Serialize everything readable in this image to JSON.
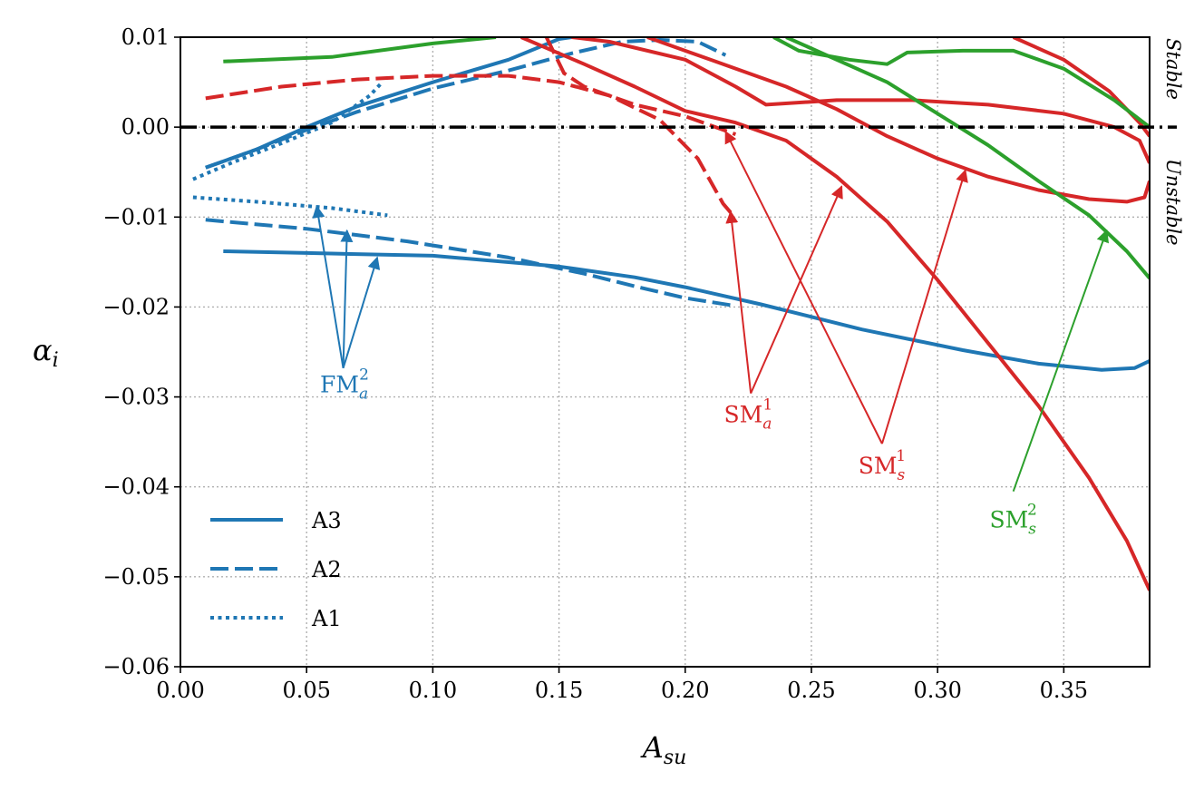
{
  "chart_data": {
    "type": "line",
    "xlabel": "A",
    "xlabel_sub": "su",
    "ylabel": "α",
    "ylabel_sub": "i",
    "xlim": [
      0.0,
      0.384
    ],
    "ylim": [
      -0.06,
      0.01
    ],
    "x_ticks": [
      0.0,
      0.05,
      0.1,
      0.15,
      0.2,
      0.25,
      0.3,
      0.35
    ],
    "x_tick_labels": [
      "0.00",
      "0.05",
      "0.10",
      "0.15",
      "0.20",
      "0.25",
      "0.30",
      "0.35"
    ],
    "y_ticks": [
      0.01,
      0.0,
      -0.01,
      -0.02,
      -0.03,
      -0.04,
      -0.05,
      -0.06
    ],
    "y_tick_labels": [
      "0.01",
      "0.00",
      "−0.01",
      "−0.02",
      "−0.03",
      "−0.04",
      "−0.05",
      "−0.06"
    ],
    "grid": true,
    "side_labels": {
      "stable": "Stable",
      "unstable": "Unstable"
    },
    "colors": {
      "blue": "#1f77b4",
      "red": "#d62728",
      "green": "#2ca02c",
      "black": "#000000",
      "grid": "#b0b0b0"
    },
    "legend": {
      "position": "lower-left",
      "entries": [
        {
          "label": "A3",
          "style": "solid"
        },
        {
          "label": "A2",
          "style": "dashed"
        },
        {
          "label": "A1",
          "style": "dotted"
        }
      ]
    },
    "reference_line": {
      "y": 0.0,
      "style": "dash-dot",
      "color": "black"
    },
    "series": [
      {
        "name": "FM a (A3)",
        "case": "A3",
        "color": "blue",
        "style": "solid",
        "points": [
          [
            0.017,
            -0.0138
          ],
          [
            0.05,
            -0.014
          ],
          [
            0.1,
            -0.0143
          ],
          [
            0.15,
            -0.0155
          ],
          [
            0.18,
            -0.0167
          ],
          [
            0.2,
            -0.0178
          ],
          [
            0.23,
            -0.0197
          ],
          [
            0.27,
            -0.0225
          ],
          [
            0.31,
            -0.0248
          ],
          [
            0.34,
            -0.0263
          ],
          [
            0.365,
            -0.027
          ],
          [
            0.378,
            -0.0268
          ],
          [
            0.384,
            -0.026
          ]
        ]
      },
      {
        "name": "FM s (A3)",
        "case": "A3",
        "color": "blue",
        "style": "solid",
        "points": [
          [
            0.01,
            -0.0045
          ],
          [
            0.03,
            -0.0025
          ],
          [
            0.05,
            0.0
          ],
          [
            0.07,
            0.0023
          ],
          [
            0.1,
            0.005
          ],
          [
            0.13,
            0.0075
          ],
          [
            0.15,
            0.0098
          ],
          [
            0.155,
            0.01
          ]
        ]
      },
      {
        "name": "FM a (A2)",
        "case": "A2",
        "color": "blue",
        "style": "dashed",
        "points": [
          [
            0.01,
            -0.0103
          ],
          [
            0.05,
            -0.0113
          ],
          [
            0.09,
            -0.0127
          ],
          [
            0.13,
            -0.0145
          ],
          [
            0.16,
            -0.0163
          ],
          [
            0.18,
            -0.0177
          ],
          [
            0.2,
            -0.019
          ],
          [
            0.218,
            -0.0198
          ]
        ]
      },
      {
        "name": "FM s (A2)",
        "case": "A2",
        "color": "blue",
        "style": "dashed",
        "points": [
          [
            0.01,
            -0.0045
          ],
          [
            0.03,
            -0.0025
          ],
          [
            0.05,
            -0.0003
          ],
          [
            0.07,
            0.0017
          ],
          [
            0.1,
            0.0043
          ],
          [
            0.13,
            0.0063
          ],
          [
            0.155,
            0.0082
          ],
          [
            0.175,
            0.0095
          ],
          [
            0.19,
            0.0097
          ],
          [
            0.205,
            0.0095
          ],
          [
            0.216,
            0.008
          ]
        ]
      },
      {
        "name": "FM a (A1)",
        "case": "A1",
        "color": "blue",
        "style": "dotted",
        "points": [
          [
            0.005,
            -0.0078
          ],
          [
            0.03,
            -0.0083
          ],
          [
            0.06,
            -0.009
          ],
          [
            0.082,
            -0.0098
          ]
        ]
      },
      {
        "name": "FM s (A1)",
        "case": "A1",
        "color": "blue",
        "style": "dotted",
        "points": [
          [
            0.005,
            -0.0058
          ],
          [
            0.02,
            -0.004
          ],
          [
            0.04,
            -0.0018
          ],
          [
            0.06,
            0.0005
          ],
          [
            0.075,
            0.0035
          ],
          [
            0.08,
            0.005
          ]
        ]
      },
      {
        "name": "SM1 a (A2)",
        "case": "A2",
        "color": "red",
        "style": "dashed",
        "points": [
          [
            0.01,
            0.0032
          ],
          [
            0.04,
            0.0045
          ],
          [
            0.07,
            0.0053
          ],
          [
            0.1,
            0.0057
          ],
          [
            0.13,
            0.0057
          ],
          [
            0.15,
            0.005
          ],
          [
            0.17,
            0.0035
          ],
          [
            0.19,
            0.0008
          ],
          [
            0.205,
            -0.0035
          ],
          [
            0.215,
            -0.0085
          ],
          [
            0.218,
            -0.0095
          ]
        ]
      },
      {
        "name": "SM1 a (A3)",
        "case": "A3",
        "color": "red",
        "style": "solid",
        "points": [
          [
            0.135,
            0.01
          ],
          [
            0.16,
            0.007
          ],
          [
            0.18,
            0.0045
          ],
          [
            0.2,
            0.0018
          ],
          [
            0.22,
            0.0005
          ],
          [
            0.24,
            -0.0015
          ],
          [
            0.26,
            -0.0055
          ],
          [
            0.28,
            -0.0105
          ],
          [
            0.3,
            -0.017
          ],
          [
            0.32,
            -0.024
          ],
          [
            0.34,
            -0.031
          ],
          [
            0.36,
            -0.039
          ],
          [
            0.375,
            -0.046
          ],
          [
            0.384,
            -0.0515
          ]
        ]
      },
      {
        "name": "SM1 s (A2)",
        "case": "A2",
        "color": "red",
        "style": "dashed",
        "points": [
          [
            0.145,
            0.01
          ],
          [
            0.152,
            0.006
          ],
          [
            0.16,
            0.0045
          ],
          [
            0.18,
            0.0025
          ],
          [
            0.2,
            0.0012
          ],
          [
            0.22,
            -0.0008
          ]
        ]
      },
      {
        "name": "SM1 s (A3)",
        "case": "A3",
        "color": "red",
        "style": "solid",
        "points": [
          [
            0.155,
            0.01
          ],
          [
            0.17,
            0.0095
          ],
          [
            0.2,
            0.0075
          ],
          [
            0.22,
            0.0045
          ],
          [
            0.232,
            0.0025
          ],
          [
            0.26,
            0.003
          ],
          [
            0.29,
            0.003
          ],
          [
            0.32,
            0.0025
          ],
          [
            0.35,
            0.0015
          ],
          [
            0.37,
            0.0
          ],
          [
            0.38,
            -0.0015
          ],
          [
            0.384,
            -0.004
          ]
        ]
      },
      {
        "name": "SM2 a (A3)",
        "case": "A3",
        "color": "red",
        "style": "solid",
        "points": [
          [
            0.185,
            0.01
          ],
          [
            0.21,
            0.0075
          ],
          [
            0.24,
            0.0045
          ],
          [
            0.26,
            0.002
          ],
          [
            0.28,
            -0.001
          ],
          [
            0.3,
            -0.0035
          ],
          [
            0.32,
            -0.0055
          ],
          [
            0.34,
            -0.007
          ],
          [
            0.36,
            -0.008
          ],
          [
            0.375,
            -0.0083
          ],
          [
            0.382,
            -0.0078
          ],
          [
            0.384,
            -0.006
          ]
        ]
      },
      {
        "name": "SM2 s (A3)",
        "case": "A3",
        "color": "red",
        "style": "solid",
        "points": [
          [
            0.33,
            0.01
          ],
          [
            0.35,
            0.0075
          ],
          [
            0.368,
            0.004
          ],
          [
            0.38,
            0.0005
          ],
          [
            0.384,
            -0.001
          ]
        ]
      },
      {
        "name": "SM s2 (A3)",
        "case": "A3",
        "color": "green",
        "style": "solid",
        "points": [
          [
            0.017,
            0.0073
          ],
          [
            0.06,
            0.0078
          ],
          [
            0.1,
            0.0093
          ],
          [
            0.125,
            0.01
          ]
        ]
      },
      {
        "name": "SM s2 upper (A3)",
        "case": "A3",
        "color": "green",
        "style": "solid",
        "points": [
          [
            0.235,
            0.01
          ],
          [
            0.245,
            0.0085
          ],
          [
            0.265,
            0.0075
          ],
          [
            0.28,
            0.007
          ],
          [
            0.288,
            0.0083
          ],
          [
            0.31,
            0.0085
          ],
          [
            0.33,
            0.0085
          ],
          [
            0.35,
            0.0065
          ],
          [
            0.37,
            0.003
          ],
          [
            0.384,
            0.0
          ]
        ]
      },
      {
        "name": "SM s2 lower (A3)",
        "case": "A3",
        "color": "green",
        "style": "solid",
        "points": [
          [
            0.24,
            0.01
          ],
          [
            0.26,
            0.0075
          ],
          [
            0.28,
            0.005
          ],
          [
            0.3,
            0.0015
          ],
          [
            0.32,
            -0.002
          ],
          [
            0.34,
            -0.006
          ],
          [
            0.36,
            -0.0098
          ],
          [
            0.375,
            -0.0138
          ],
          [
            0.384,
            -0.0168
          ]
        ]
      }
    ],
    "annotations": [
      {
        "label": "FM",
        "sub": "a",
        "sup": "2",
        "color": "blue",
        "text_xy": [
          0.065,
          -0.0295
        ],
        "tail": [
          0.0645,
          -0.0268
        ],
        "targets": [
          [
            0.054,
            -0.0088
          ],
          [
            0.066,
            -0.0115
          ],
          [
            0.078,
            -0.0145
          ]
        ]
      },
      {
        "label": "SM",
        "sub": "a",
        "sup": "1",
        "color": "red",
        "text_xy": [
          0.225,
          -0.0328
        ],
        "tail": [
          0.226,
          -0.0296
        ],
        "targets": [
          [
            0.218,
            -0.0094
          ],
          [
            0.262,
            -0.0066
          ]
        ]
      },
      {
        "label": "SM",
        "sub": "s",
        "sup": "1",
        "color": "red",
        "text_xy": [
          0.278,
          -0.0385
        ],
        "tail": [
          0.278,
          -0.0352
        ],
        "targets": [
          [
            0.216,
            -0.0005
          ],
          [
            0.311,
            -0.0048
          ]
        ]
      },
      {
        "label": "SM",
        "sub": "s",
        "sup": "2",
        "color": "green",
        "text_xy": [
          0.33,
          -0.0445
        ],
        "tail": [
          0.33,
          -0.0405
        ],
        "targets": [
          [
            0.367,
            -0.0115
          ]
        ]
      }
    ]
  }
}
